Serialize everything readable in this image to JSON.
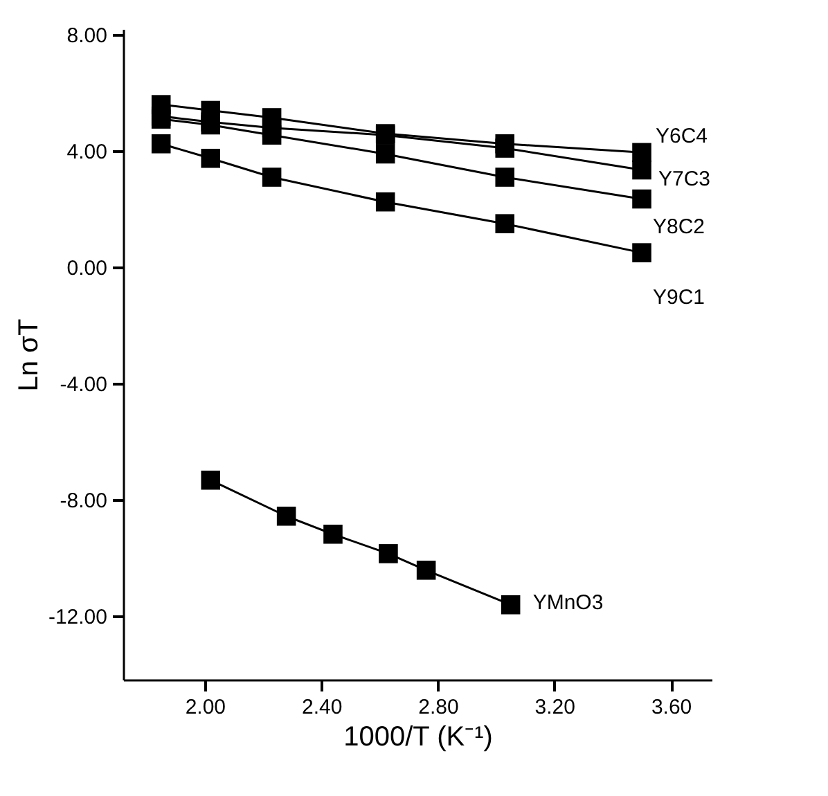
{
  "chart_data": {
    "type": "line",
    "xlabel": "1000/T (K⁻¹)",
    "ylabel": "Ln σT",
    "marker": "square",
    "line_style": "solid",
    "xlim": [
      1.72,
      3.74
    ],
    "ylim": [
      -14.2,
      8.2
    ],
    "xticks": [
      {
        "value": 2,
        "label": "2.00"
      },
      {
        "value": 2.4,
        "label": "2.40"
      },
      {
        "value": 2.8,
        "label": "2.80"
      },
      {
        "value": 3.2,
        "label": "3.20"
      },
      {
        "value": 3.6,
        "label": "3.60"
      }
    ],
    "yticks": [
      {
        "value": -12,
        "label": "-12.00"
      },
      {
        "value": -8,
        "label": "-8.00"
      },
      {
        "value": -4,
        "label": "-4.00"
      },
      {
        "value": 0,
        "label": "0.00"
      },
      {
        "value": 4,
        "label": "4.00"
      },
      {
        "value": 8,
        "label": "8.00"
      }
    ],
    "x": [
      1.85,
      2.02,
      2.23,
      2.62,
      3.03,
      3.5
    ],
    "series": [
      {
        "name": "Y6C4",
        "color": "#000000",
        "values": [
          5.6,
          5.4,
          5.15,
          4.6,
          4.25,
          3.95
        ]
      },
      {
        "name": "Y7C3",
        "color": "#000000",
        "values": [
          5.2,
          5.0,
          4.8,
          4.55,
          4.1,
          3.35
        ]
      },
      {
        "name": "Y8C2",
        "color": "#000000",
        "values": [
          5.1,
          4.9,
          4.55,
          3.9,
          3.1,
          2.35
        ]
      },
      {
        "name": "Y9C1",
        "color": "#000000",
        "values": [
          4.25,
          3.75,
          3.1,
          2.25,
          1.5,
          0.5
        ]
      },
      {
        "name": "YMnO3",
        "color": "#000000",
        "x": [
          2.02,
          2.28,
          2.44,
          2.63,
          2.76,
          3.05
        ],
        "values": [
          -7.33,
          -8.57,
          -9.19,
          -9.86,
          -10.43,
          -11.62
        ]
      }
    ]
  }
}
